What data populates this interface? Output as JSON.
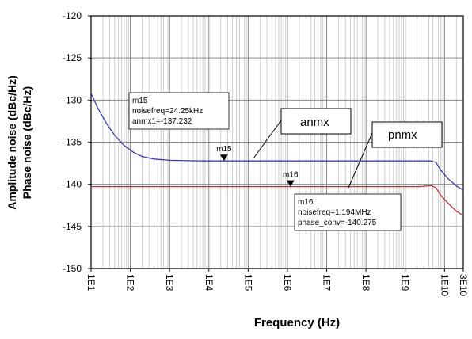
{
  "chart_data": {
    "type": "line",
    "xlabel": "Frequency (Hz)",
    "ylabel_lines": [
      "Amplitude noise (dBc/Hz)",
      "Phase noise (dBc/Hz)"
    ],
    "x_scale": "log",
    "xlim": [
      10,
      30000000000
    ],
    "ylim": [
      -150,
      -120
    ],
    "grid": true,
    "x_ticks": [
      {
        "value": 10,
        "label": "1E1"
      },
      {
        "value": 100,
        "label": "1E2"
      },
      {
        "value": 1000,
        "label": "1E3"
      },
      {
        "value": 10000,
        "label": "1E4"
      },
      {
        "value": 100000,
        "label": "1E5"
      },
      {
        "value": 1000000,
        "label": "1E6"
      },
      {
        "value": 10000000,
        "label": "1E7"
      },
      {
        "value": 100000000,
        "label": "1E8"
      },
      {
        "value": 1000000000,
        "label": "1E9"
      },
      {
        "value": 10000000000,
        "label": "1E10"
      },
      {
        "value": 30000000000,
        "label": "3E10"
      }
    ],
    "y_ticks": [
      -120,
      -125,
      -130,
      -135,
      -140,
      -145,
      -150
    ],
    "series": [
      {
        "name": "anmx",
        "color": "#3a3ab8",
        "points": [
          [
            10,
            -129.2
          ],
          [
            15,
            -131.0
          ],
          [
            25,
            -132.8
          ],
          [
            40,
            -134.2
          ],
          [
            70,
            -135.4
          ],
          [
            120,
            -136.2
          ],
          [
            200,
            -136.7
          ],
          [
            400,
            -137.0
          ],
          [
            1000,
            -137.15
          ],
          [
            3000,
            -137.2
          ],
          [
            10000,
            -137.23
          ],
          [
            100000,
            -137.23
          ],
          [
            1000000,
            -137.23
          ],
          [
            10000000,
            -137.23
          ],
          [
            100000000,
            -137.23
          ],
          [
            1000000000,
            -137.23
          ],
          [
            4500000000,
            -137.23
          ],
          [
            6000000000,
            -137.4
          ],
          [
            8000000000,
            -138.3
          ],
          [
            12000000000,
            -139.3
          ],
          [
            20000000000,
            -140.2
          ],
          [
            30000000000,
            -140.7
          ]
        ]
      },
      {
        "name": "pnmx",
        "color": "#c83030",
        "points": [
          [
            10,
            -140.28
          ],
          [
            100000,
            -140.28
          ],
          [
            1000000000,
            -140.28
          ],
          [
            2500000000,
            -140.28
          ],
          [
            4500000000,
            -140.15
          ],
          [
            6000000000,
            -140.4
          ],
          [
            8000000000,
            -141.3
          ],
          [
            12000000000,
            -142.2
          ],
          [
            20000000000,
            -143.2
          ],
          [
            30000000000,
            -143.7
          ]
        ]
      }
    ],
    "markers": [
      {
        "id": "m15",
        "x": 24250,
        "y": -137.232,
        "lines": [
          "m15",
          "noisefreq=24.25kHz",
          "anmx1=-137.232"
        ]
      },
      {
        "id": "m16",
        "x": 1194000,
        "y": -140.275,
        "lines": [
          "m16",
          "noisefreq=1.194MHz",
          "phase_conv=-140.275"
        ]
      }
    ],
    "series_labels": [
      "anmx",
      "pnmx"
    ]
  }
}
